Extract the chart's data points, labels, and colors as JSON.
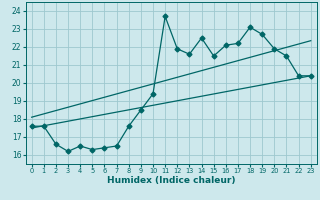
{
  "title": "",
  "xlabel": "Humidex (Indice chaleur)",
  "ylabel": "",
  "bg_color": "#cde8ec",
  "grid_color": "#9ec8cf",
  "line_color": "#006666",
  "xlim": [
    -0.5,
    23.5
  ],
  "ylim": [
    15.5,
    24.5
  ],
  "xticks": [
    0,
    1,
    2,
    3,
    4,
    5,
    6,
    7,
    8,
    9,
    10,
    11,
    12,
    13,
    14,
    15,
    16,
    17,
    18,
    19,
    20,
    21,
    22,
    23
  ],
  "yticks": [
    16,
    17,
    18,
    19,
    20,
    21,
    22,
    23,
    24
  ],
  "jagged_x": [
    0,
    1,
    2,
    3,
    4,
    5,
    6,
    7,
    8,
    9,
    10,
    11,
    12,
    13,
    14,
    15,
    16,
    17,
    18,
    19,
    20,
    21,
    22,
    23
  ],
  "jagged_y": [
    17.6,
    17.6,
    16.6,
    16.2,
    16.5,
    16.3,
    16.4,
    16.5,
    17.6,
    18.5,
    19.4,
    23.7,
    21.9,
    21.6,
    22.5,
    21.5,
    22.1,
    22.2,
    23.1,
    22.7,
    21.9,
    21.5,
    20.4,
    20.4
  ],
  "upper_line_x": [
    0,
    23
  ],
  "upper_line_y": [
    18.1,
    22.35
  ],
  "lower_line_x": [
    0,
    23
  ],
  "lower_line_y": [
    17.5,
    20.4
  ],
  "marker": "D",
  "marker_size": 2.5,
  "line_width": 0.9
}
